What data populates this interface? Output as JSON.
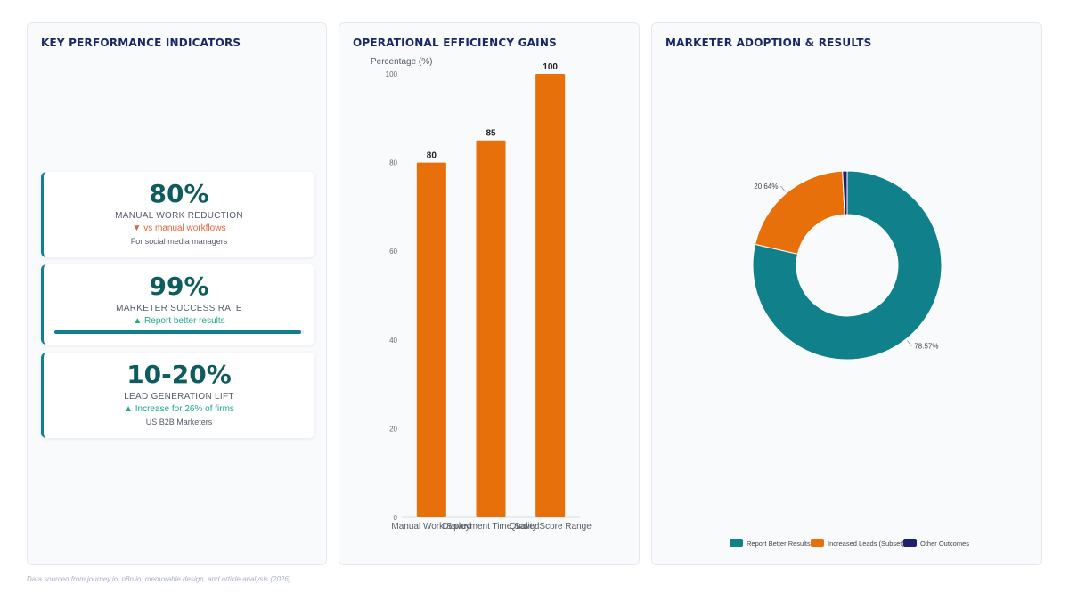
{
  "kpi_panel": {
    "title": "KEY PERFORMANCE INDICATORS",
    "cards": [
      {
        "value": "80%",
        "label": "MANUAL WORK REDUCTION",
        "trend": "▼ vs manual workflows",
        "trend_dir": "down",
        "sub": "For social media managers"
      },
      {
        "value": "99%",
        "label": "MARKETER SUCCESS RATE",
        "trend": "▲ Report better results",
        "trend_dir": "up",
        "progress": 0.99
      },
      {
        "value": "10-20%",
        "label": "LEAD GENERATION LIFT",
        "trend": "▲ Increase for 26% of firms",
        "trend_dir": "up",
        "sub": "US B2B Marketers"
      }
    ]
  },
  "efficiency_panel": {
    "title": "OPERATIONAL EFFICIENCY GAINS"
  },
  "adoption_panel": {
    "title": "MARKETER ADOPTION & RESULTS"
  },
  "footer": {
    "note": "Data sourced from journey.io, n8n.io, memorable.design, and article analysis (2026)."
  },
  "colors": {
    "accent": "#10808a",
    "orange": "#e8700a",
    "navy": "#1f1d6e",
    "title": "#1a2766"
  },
  "chart_data": [
    {
      "type": "bar",
      "categories": [
        "Manual Work Saved",
        "Deployment Time Saved",
        "Quality Score Range"
      ],
      "values": [
        80,
        85,
        100
      ],
      "ylabel": "Percentage (%)",
      "ylim": [
        0,
        100
      ],
      "yticks": [
        0,
        20,
        40,
        60,
        80,
        100
      ],
      "grid": false,
      "color": "#e8700a"
    },
    {
      "type": "pie",
      "donut": true,
      "labels": [
        "Report Better Results",
        "Increased Leads (Subset)",
        "Other Outcomes"
      ],
      "values": [
        78.57,
        20.64,
        0.79
      ],
      "percent_labels": [
        "78.57%",
        "20.64%",
        ""
      ],
      "colors": [
        "#10808a",
        "#e8700a",
        "#1f1d6e"
      ],
      "legend": "bottom"
    }
  ]
}
